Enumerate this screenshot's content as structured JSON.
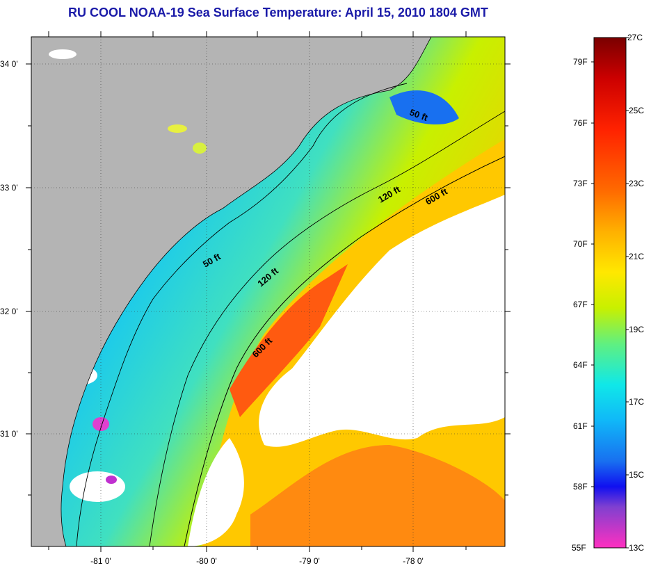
{
  "title": "RU COOL  NOAA-19  Sea Surface Temperature:  April 15, 2010 1804 GMT",
  "map": {
    "lat_ticks": [
      "34 0'",
      "33 0'",
      "32 0'",
      "31 0'"
    ],
    "lon_ticks": [
      "-81 0'",
      "-80 0'",
      "-79 0'",
      "-78 0'"
    ],
    "contours": [
      {
        "label": "50 ft",
        "depth": 50
      },
      {
        "label": "50 ft",
        "depth": 50
      },
      {
        "label": "120 ft",
        "depth": 120
      },
      {
        "label": "120 ft",
        "depth": 120
      },
      {
        "label": "600 ft",
        "depth": 600
      },
      {
        "label": "600 ft",
        "depth": 600
      }
    ],
    "land_color": "#b4b4b4",
    "cloud_color": "#ffffff"
  },
  "colorbar": {
    "fahrenheit_labels": [
      "79F",
      "76F",
      "73F",
      "70F",
      "67F",
      "64F",
      "61F",
      "58F",
      "55F"
    ],
    "celsius_labels": [
      "27C",
      "25C",
      "23C",
      "21C",
      "19C",
      "17C",
      "15C",
      "13C"
    ],
    "colors": [
      "#7a0000",
      "#cc0000",
      "#ff2200",
      "#ff6a00",
      "#ffb000",
      "#ffe800",
      "#c8f000",
      "#60f080",
      "#10e8e8",
      "#10b8f8",
      "#1870f0",
      "#1010f0",
      "#8040d0",
      "#ff30c0"
    ]
  }
}
